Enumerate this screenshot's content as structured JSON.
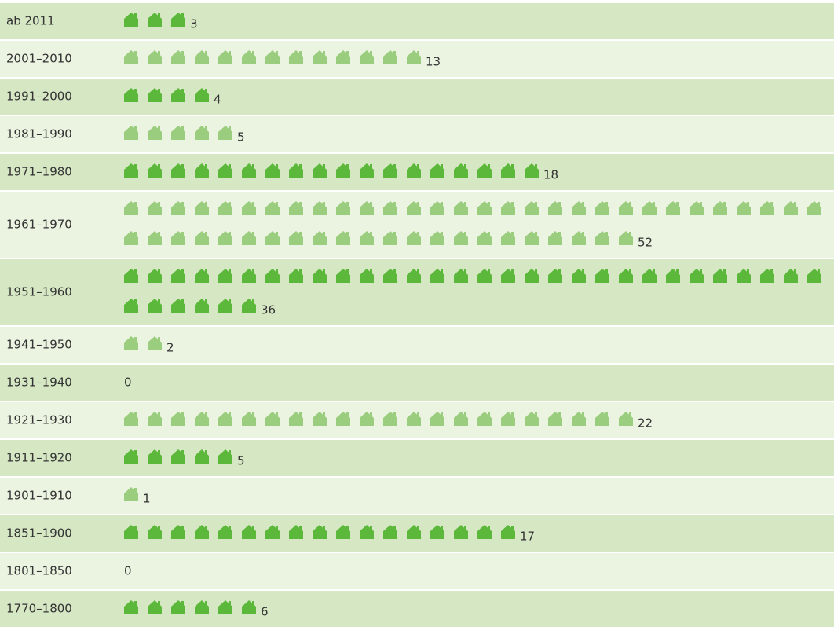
{
  "chart_data": {
    "type": "pictogram",
    "categories": [
      "ab 2011",
      "2001–2010",
      "1991–2000",
      "1981–1990",
      "1971–1980",
      "1961–1970",
      "1951–1960",
      "1941–1950",
      "1931–1940",
      "1921–1930",
      "1911–1920",
      "1901–1910",
      "1851–1900",
      "1801–1850",
      "1770–1800"
    ],
    "values": [
      3,
      13,
      4,
      5,
      18,
      52,
      36,
      2,
      0,
      22,
      5,
      1,
      17,
      0,
      6
    ],
    "colors": [
      "#5cb83a",
      "#9bcd7f",
      "#5cb83a",
      "#9bcd7f",
      "#5cb83a",
      "#9bcd7f",
      "#5cb83a",
      "#9bcd7f",
      "#9bcd7f",
      "#9bcd7f",
      "#5cb83a",
      "#9bcd7f",
      "#5cb83a",
      "#5cb83a",
      "#5cb83a"
    ]
  }
}
